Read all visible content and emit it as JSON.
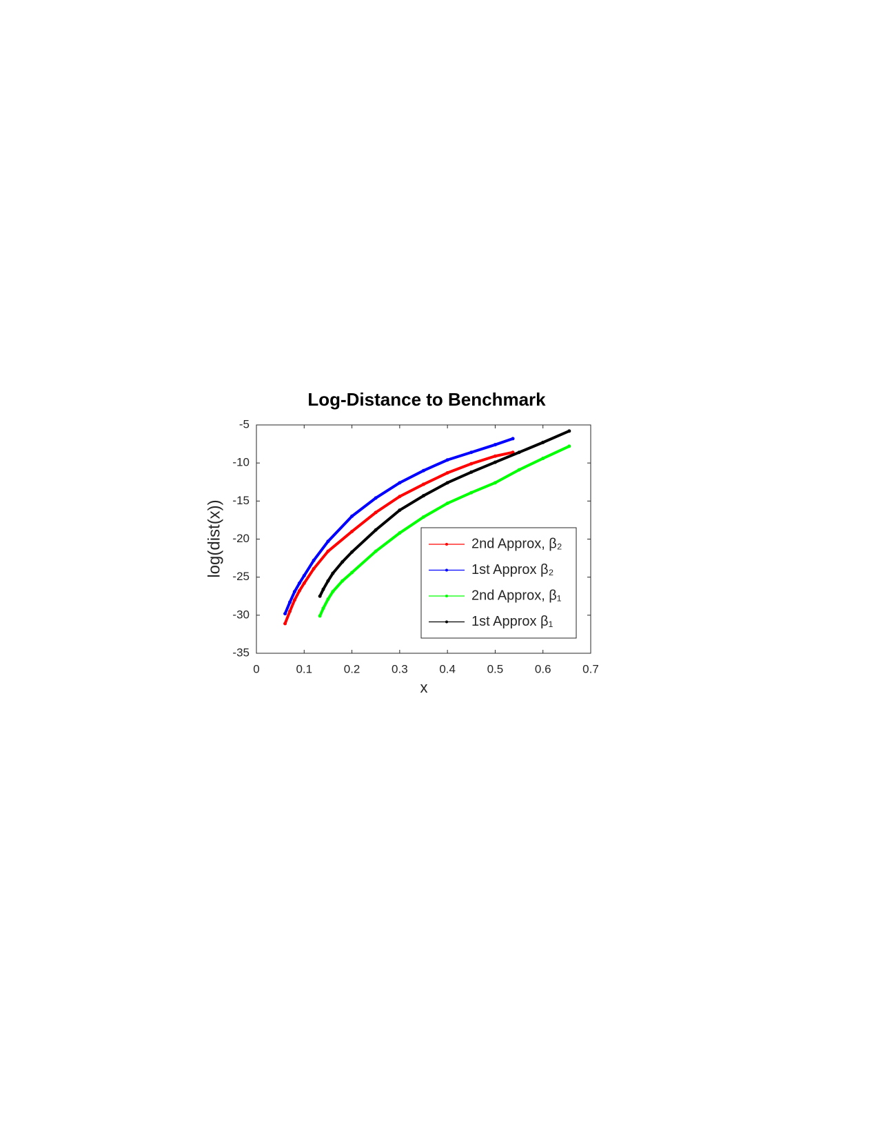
{
  "chart_data": {
    "type": "line",
    "title": "Log-Distance to Benchmark",
    "x_label": "x",
    "y_label": "log(dist(x))",
    "xlim": [
      0,
      0.7
    ],
    "xticks": [
      0,
      0.1,
      0.2,
      0.3,
      0.4,
      0.5,
      0.6,
      0.7
    ],
    "ylim": [
      -35,
      -5
    ],
    "yticks": [
      -35,
      -30,
      -25,
      -20,
      -15,
      -10,
      -5
    ],
    "legend_position": "southeast",
    "series": [
      {
        "name": "2nd Approx, β₂",
        "color": "#ff0000",
        "x": [
          0.06,
          0.07,
          0.08,
          0.09,
          0.1,
          0.12,
          0.15,
          0.2,
          0.25,
          0.3,
          0.35,
          0.4,
          0.45,
          0.5,
          0.537
        ],
        "values": [
          -31.1,
          -29.5,
          -28.0,
          -26.8,
          -25.8,
          -23.9,
          -21.6,
          -19.0,
          -16.5,
          -14.4,
          -12.8,
          -11.3,
          -10.1,
          -9.1,
          -8.6
        ]
      },
      {
        "name": "1st Approx β₂",
        "color": "#0000ff",
        "x": [
          0.06,
          0.07,
          0.08,
          0.09,
          0.1,
          0.12,
          0.15,
          0.2,
          0.25,
          0.3,
          0.35,
          0.4,
          0.45,
          0.5,
          0.537
        ],
        "values": [
          -29.8,
          -28.3,
          -26.9,
          -25.8,
          -24.8,
          -22.8,
          -20.3,
          -17.0,
          -14.6,
          -12.6,
          -11.0,
          -9.6,
          -8.6,
          -7.6,
          -6.8
        ]
      },
      {
        "name": "2nd Approx, β₁",
        "color": "#00ff00",
        "x": [
          0.133,
          0.14,
          0.15,
          0.16,
          0.18,
          0.2,
          0.25,
          0.3,
          0.35,
          0.4,
          0.45,
          0.5,
          0.55,
          0.6,
          0.655
        ],
        "values": [
          -30.1,
          -29.1,
          -27.9,
          -26.9,
          -25.5,
          -24.4,
          -21.6,
          -19.2,
          -17.1,
          -15.3,
          -13.9,
          -12.6,
          -10.9,
          -9.4,
          -7.8
        ]
      },
      {
        "name": "1st Approx β₁",
        "color": "#000000",
        "x": [
          0.133,
          0.14,
          0.15,
          0.16,
          0.18,
          0.2,
          0.25,
          0.3,
          0.35,
          0.4,
          0.45,
          0.5,
          0.55,
          0.6,
          0.655
        ],
        "values": [
          -27.5,
          -26.6,
          -25.5,
          -24.5,
          -23.0,
          -21.7,
          -18.8,
          -16.2,
          -14.3,
          -12.6,
          -11.2,
          -9.9,
          -8.6,
          -7.3,
          -5.8
        ]
      }
    ]
  }
}
